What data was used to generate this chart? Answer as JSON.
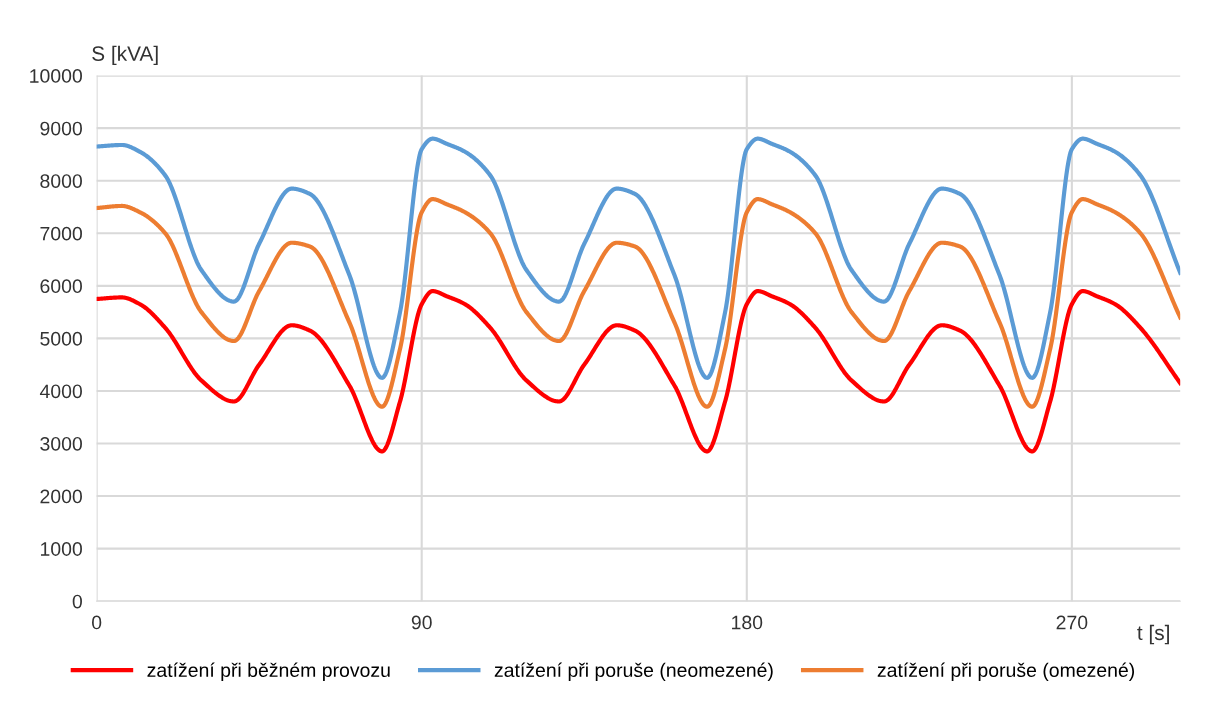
{
  "chart_data": {
    "type": "line",
    "ylabel": "S [kVA]",
    "xlabel": "t [s]",
    "x": [
      0,
      7,
      12,
      19,
      29,
      38,
      45,
      54,
      59,
      70,
      79,
      84,
      90,
      93,
      97,
      102,
      109,
      119,
      128,
      135,
      144,
      149,
      160,
      169,
      174,
      180,
      183,
      187,
      192,
      199,
      209,
      218,
      225,
      234,
      239,
      250,
      259,
      264,
      270,
      273,
      277,
      282,
      289,
      300
    ],
    "series": [
      {
        "name": "zatížení při běžném provozu",
        "color": "#ff0000",
        "values": [
          5750,
          5780,
          5650,
          5200,
          4200,
          3800,
          4500,
          5250,
          5150,
          4100,
          2850,
          3800,
          5650,
          5900,
          5800,
          5650,
          5200,
          4200,
          3800,
          4500,
          5250,
          5150,
          4100,
          2850,
          3800,
          5650,
          5900,
          5800,
          5650,
          5200,
          4200,
          3800,
          4500,
          5250,
          5150,
          4100,
          2850,
          3800,
          5650,
          5900,
          5800,
          5650,
          5200,
          4150
        ]
      },
      {
        "name": "zatížení při poruše (neomezené)",
        "color": "#5b9bd5",
        "values": [
          8650,
          8680,
          8550,
          8100,
          6300,
          5700,
          6800,
          7850,
          7750,
          6200,
          4250,
          5500,
          8600,
          8800,
          8700,
          8550,
          8100,
          6300,
          5700,
          6800,
          7850,
          7750,
          6200,
          4250,
          5500,
          8600,
          8800,
          8700,
          8550,
          8100,
          6300,
          5700,
          6800,
          7850,
          7750,
          6200,
          4250,
          5500,
          8600,
          8800,
          8700,
          8550,
          8100,
          6250
        ]
      },
      {
        "name": "zatížení při poruše (omezené)",
        "color": "#ed7d31",
        "values": [
          7480,
          7520,
          7400,
          7000,
          5500,
          4950,
          5900,
          6820,
          6750,
          5300,
          3700,
          4800,
          7400,
          7650,
          7550,
          7400,
          7000,
          5500,
          4950,
          5900,
          6820,
          6750,
          5300,
          3700,
          4800,
          7400,
          7650,
          7550,
          7400,
          7000,
          5500,
          4950,
          5900,
          6820,
          6750,
          5300,
          3700,
          4800,
          7400,
          7650,
          7550,
          7400,
          7000,
          5400
        ]
      }
    ],
    "xlim": [
      0,
      300
    ],
    "xticks": [
      0,
      90,
      180,
      270
    ],
    "ylim": [
      0,
      10000
    ],
    "yticks": [
      0,
      1000,
      2000,
      3000,
      4000,
      5000,
      6000,
      7000,
      8000,
      9000,
      10000
    ],
    "grid": true,
    "legend": "bottom",
    "marker": "none",
    "line_style": "solid"
  }
}
